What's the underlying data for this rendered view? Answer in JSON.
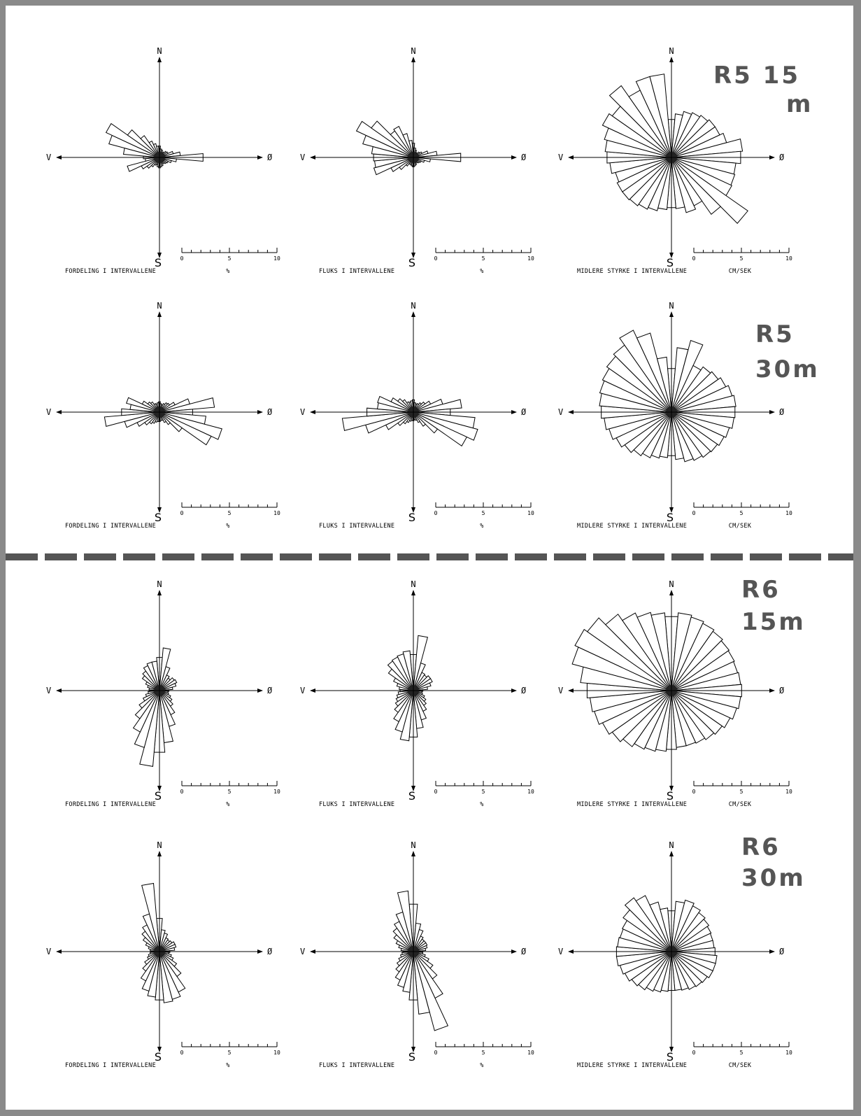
{
  "page_labels": [
    {
      "id": "r5-15",
      "lines": [
        "R5  15",
        "m"
      ]
    },
    {
      "id": "r5-30",
      "lines": [
        "R5",
        "30m"
      ]
    },
    {
      "id": "r6-15",
      "lines": [
        "R6",
        "15m"
      ]
    },
    {
      "id": "r6-30",
      "lines": [
        "R6",
        "30m"
      ]
    }
  ],
  "chart_data": [
    {
      "type": "polar-bar",
      "id": "r5-15-fordeling",
      "station": "R5",
      "depth": "15 m",
      "title": "FORDELING I INTERVALLENE",
      "unit": "%",
      "compass": {
        "N": "N",
        "S": "S",
        "E": "Ø",
        "W": "V"
      },
      "scale_ticks": [
        "0",
        "5",
        "10"
      ],
      "scale_max": 10,
      "sector_deg": 10,
      "values": [
        1.2,
        0.9,
        0.8,
        0.6,
        0.7,
        0.9,
        1.0,
        1.5,
        2.2,
        4.6,
        1.8,
        1.3,
        1.0,
        0.9,
        0.8,
        0.7,
        0.9,
        1.0,
        1.1,
        1.0,
        0.8,
        0.9,
        1.2,
        1.6,
        2.1,
        3.5,
        1.5,
        1.7,
        3.8,
        5.5,
        6.2,
        4.1,
        2.8,
        1.9,
        1.5,
        1.2
      ]
    },
    {
      "type": "polar-bar",
      "id": "r5-15-fluks",
      "station": "R5",
      "depth": "15 m",
      "title": "FLUKS I INTERVALLENE",
      "unit": "%",
      "compass": {
        "N": "N",
        "S": "S",
        "E": "Ø",
        "W": "V"
      },
      "scale_ticks": [
        "0",
        "5",
        "10"
      ],
      "scale_max": 10,
      "sector_deg": 10,
      "values": [
        1.5,
        1.0,
        0.8,
        0.6,
        0.6,
        0.8,
        1.0,
        1.6,
        2.5,
        5.0,
        1.8,
        1.2,
        0.9,
        0.8,
        0.7,
        0.6,
        0.8,
        0.9,
        1.0,
        0.9,
        0.8,
        0.8,
        1.1,
        1.8,
        2.6,
        4.3,
        4.1,
        4.2,
        4.4,
        5.5,
        6.6,
        5.4,
        3.4,
        3.6,
        2.6,
        1.8
      ]
    },
    {
      "type": "polar-bar",
      "id": "r5-15-styrke",
      "station": "R5",
      "depth": "15 m",
      "title": "MIDLERE STYRKE I INTERVALLENE",
      "unit": "CM/SEK",
      "compass": {
        "N": "N",
        "S": "S",
        "E": "Ø",
        "W": "V"
      },
      "scale_ticks": [
        "0",
        "5",
        "10"
      ],
      "scale_max": 10,
      "sector_deg": 10,
      "values": [
        4.0,
        4.6,
        5.0,
        5.2,
        5.4,
        5.6,
        5.6,
        6.0,
        7.5,
        7.3,
        6.8,
        6.9,
        7.0,
        9.8,
        7.3,
        5.6,
        6.0,
        5.4,
        5.3,
        5.5,
        5.8,
        6.0,
        6.2,
        6.3,
        6.3,
        6.1,
        6.5,
        6.8,
        7.0,
        7.3,
        8.0,
        7.6,
        9.2,
        7.8,
        8.8,
        8.8
      ]
    },
    {
      "type": "polar-bar",
      "id": "r5-30-fordeling",
      "station": "R5",
      "depth": "30m",
      "title": "FORDELING I INTERVALLENE",
      "unit": "%",
      "compass": {
        "N": "N",
        "S": "S",
        "E": "Ø",
        "W": "V"
      },
      "scale_ticks": [
        "0",
        "5",
        "10"
      ],
      "scale_max": 10,
      "sector_deg": 10,
      "values": [
        1.1,
        0.9,
        0.8,
        1.0,
        1.2,
        1.3,
        1.8,
        3.3,
        5.8,
        3.5,
        4.9,
        6.8,
        6.0,
        2.9,
        1.6,
        1.2,
        0.9,
        0.9,
        1.0,
        1.0,
        1.1,
        1.3,
        1.5,
        1.9,
        2.6,
        3.8,
        5.8,
        4.0,
        3.1,
        3.6,
        2.0,
        1.5,
        1.3,
        1.0,
        0.9,
        1.0
      ]
    },
    {
      "type": "polar-bar",
      "id": "r5-30-fluks",
      "station": "R5",
      "depth": "30m",
      "title": "FLUKS I INTERVALLENE",
      "unit": "%",
      "compass": {
        "N": "N",
        "S": "S",
        "E": "Ø",
        "W": "V"
      },
      "scale_ticks": [
        "0",
        "5",
        "10"
      ],
      "scale_max": 10,
      "sector_deg": 10,
      "values": [
        1.3,
        1.0,
        0.9,
        1.0,
        1.2,
        1.5,
        2.0,
        3.2,
        5.1,
        3.9,
        6.5,
        7.0,
        6.2,
        3.1,
        1.8,
        1.2,
        0.9,
        0.8,
        0.9,
        0.9,
        1.0,
        1.2,
        1.5,
        2.0,
        3.2,
        5.2,
        7.5,
        4.9,
        3.8,
        3.9,
        2.6,
        2.0,
        1.6,
        1.2,
        1.1,
        1.2
      ]
    },
    {
      "type": "polar-bar",
      "id": "r5-30-styrke",
      "station": "R5",
      "depth": "30m",
      "title": "MIDLERE STYRKE I INTERVALLENE",
      "unit": "CM/SEK",
      "compass": {
        "N": "N",
        "S": "S",
        "E": "Ø",
        "W": "V"
      },
      "scale_ticks": [
        "0",
        "5",
        "10"
      ],
      "scale_max": 10,
      "sector_deg": 10,
      "values": [
        4.6,
        6.8,
        7.8,
        5.4,
        5.8,
        6.0,
        6.3,
        6.6,
        6.8,
        6.7,
        6.6,
        6.3,
        6.1,
        5.9,
        5.8,
        5.6,
        5.4,
        5.0,
        4.6,
        4.8,
        5.0,
        5.3,
        5.6,
        6.0,
        6.4,
        6.8,
        7.1,
        7.4,
        7.6,
        7.8,
        8.0,
        8.3,
        8.6,
        9.5,
        8.6,
        5.8
      ]
    },
    {
      "type": "polar-bar",
      "id": "r6-15-fordeling",
      "station": "R6",
      "depth": "15m",
      "title": "FORDELING I INTERVALLENE",
      "unit": "%",
      "compass": {
        "N": "N",
        "S": "S",
        "E": "Ø",
        "W": "V"
      },
      "scale_ticks": [
        "0",
        "5",
        "10"
      ],
      "scale_max": 10,
      "sector_deg": 10,
      "values": [
        3.5,
        4.5,
        2.6,
        1.8,
        1.6,
        1.9,
        2.0,
        1.8,
        1.4,
        1.0,
        0.9,
        1.0,
        1.3,
        1.6,
        2.0,
        2.8,
        3.9,
        5.5,
        6.5,
        8.0,
        6.2,
        4.8,
        3.6,
        2.6,
        1.9,
        1.5,
        1.2,
        1.1,
        1.1,
        1.3,
        1.6,
        2.2,
        2.5,
        2.9,
        3.1,
        3.1
      ]
    },
    {
      "type": "polar-bar",
      "id": "r6-15-fluks",
      "station": "R6",
      "depth": "15m",
      "title": "FLUKS I INTERVALLENE",
      "unit": "%",
      "compass": {
        "N": "N",
        "S": "S",
        "E": "Ø",
        "W": "V"
      },
      "scale_ticks": [
        "0",
        "5",
        "10"
      ],
      "scale_max": 10,
      "sector_deg": 10,
      "values": [
        3.8,
        5.8,
        3.0,
        2.1,
        2.0,
        2.2,
        2.2,
        1.9,
        1.5,
        1.0,
        0.9,
        1.0,
        1.3,
        1.6,
        1.9,
        2.4,
        3.2,
        4.0,
        4.9,
        5.3,
        4.5,
        3.6,
        2.8,
        2.3,
        2.0,
        1.8,
        1.6,
        1.4,
        1.5,
        1.8,
        2.3,
        3.2,
        3.8,
        3.9,
        4.0,
        4.2
      ]
    },
    {
      "type": "polar-bar",
      "id": "r6-15-styrke",
      "station": "R6",
      "depth": "15m",
      "title": "MIDLERE STYRKE I INTERVALLENE",
      "unit": "CM/SEK",
      "compass": {
        "N": "N",
        "S": "S",
        "E": "Ø",
        "W": "V"
      },
      "scale_ticks": [
        "0",
        "5",
        "10"
      ],
      "scale_max": 10,
      "sector_deg": 10,
      "values": [
        7.8,
        8.2,
        8.0,
        7.8,
        7.6,
        7.4,
        7.3,
        7.2,
        7.3,
        7.4,
        7.3,
        7.1,
        6.8,
        6.5,
        6.3,
        6.1,
        6.0,
        6.0,
        6.2,
        6.4,
        6.6,
        6.8,
        7.2,
        7.6,
        8.0,
        8.4,
        8.6,
        8.9,
        9.6,
        10.8,
        11.2,
        10.8,
        9.8,
        9.0,
        8.5,
        8.2
      ]
    },
    {
      "type": "polar-bar",
      "id": "r6-30-fordeling",
      "station": "R6",
      "depth": "30m",
      "title": "FORDELING I INTERVALLENE",
      "unit": "%",
      "compass": {
        "N": "N",
        "S": "S",
        "E": "Ø",
        "W": "V"
      },
      "scale_ticks": [
        "0",
        "5",
        "10"
      ],
      "scale_max": 10,
      "sector_deg": 10,
      "values": [
        3.5,
        2.3,
        2.0,
        1.6,
        1.5,
        1.6,
        1.8,
        1.8,
        1.6,
        1.1,
        1.0,
        1.3,
        1.6,
        2.2,
        3.2,
        4.7,
        5.2,
        5.4,
        5.1,
        4.8,
        4.3,
        3.4,
        2.5,
        1.9,
        1.4,
        1.2,
        1.0,
        0.9,
        1.0,
        1.2,
        1.6,
        2.1,
        2.6,
        3.1,
        4.1,
        7.2
      ]
    },
    {
      "type": "polar-bar",
      "id": "r6-30-fluks",
      "station": "R6",
      "depth": "30m",
      "title": "FLUKS I INTERVALLENE",
      "unit": "%",
      "compass": {
        "N": "N",
        "S": "S",
        "E": "Ø",
        "W": "V"
      },
      "scale_ticks": [
        "0",
        "5",
        "10"
      ],
      "scale_max": 10,
      "sector_deg": 10,
      "values": [
        5.0,
        3.0,
        2.4,
        1.8,
        1.6,
        1.6,
        1.6,
        1.5,
        1.3,
        1.0,
        1.0,
        1.3,
        1.8,
        2.5,
        3.5,
        5.4,
        8.6,
        6.6,
        5.1,
        4.3,
        3.9,
        3.3,
        2.6,
        2.1,
        1.7,
        1.4,
        1.2,
        1.1,
        1.3,
        1.6,
        2.0,
        2.5,
        3.0,
        3.5,
        4.3,
        6.4
      ]
    },
    {
      "type": "polar-bar",
      "id": "r6-30-styrke",
      "station": "R6",
      "depth": "30m",
      "title": "MIDLERE STYRKE I INTERVALLENE",
      "unit": "CM/SEK",
      "compass": {
        "N": "N",
        "S": "S",
        "E": "Ø",
        "W": "V"
      },
      "scale_ticks": [
        "0",
        "5",
        "10"
      ],
      "scale_max": 10,
      "sector_deg": 10,
      "values": [
        4.3,
        5.3,
        5.6,
        5.3,
        5.0,
        4.8,
        4.6,
        4.5,
        4.5,
        4.6,
        4.8,
        4.8,
        4.8,
        4.6,
        4.5,
        4.4,
        4.2,
        4.1,
        4.1,
        4.2,
        4.4,
        4.6,
        4.9,
        5.1,
        5.4,
        5.6,
        5.8,
        5.8,
        5.7,
        5.6,
        5.7,
        6.2,
        6.9,
        6.5,
        5.4,
        4.6
      ]
    }
  ]
}
